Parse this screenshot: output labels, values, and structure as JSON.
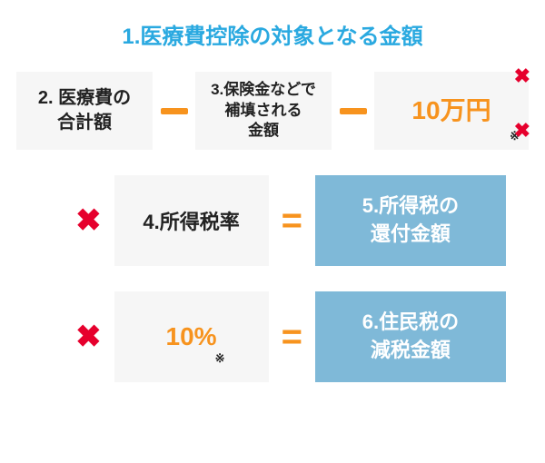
{
  "colors": {
    "title": "#2aa9e0",
    "accent_orange": "#f7931e",
    "red_x": "#e6002d",
    "box_bg": "#f6f6f6",
    "result_bg": "#7fb9d8",
    "result_text": "#ffffff",
    "text": "#222222"
  },
  "title": {
    "text": "1.医療費控除の対象となる金額",
    "fontsize": 24
  },
  "row1": {
    "box1": {
      "line1": "2. 医療費の",
      "line2": "合計額"
    },
    "box2": {
      "line1": "3.保険金などで",
      "line2": "補填される",
      "line3": "金額"
    },
    "box3": {
      "text": "10万円",
      "note": "※"
    },
    "minus_width": 30,
    "minus_height": 7
  },
  "x_icon": {
    "glyph": "✖",
    "fontsize": 34
  },
  "x_small": {
    "glyph": "✖",
    "fontsize": 22
  },
  "eq": {
    "glyph": "=",
    "fontsize": 40
  },
  "row2": {
    "mid": "4.所得税率",
    "result": {
      "line1": "5.所得税の",
      "line2": "還付金額"
    }
  },
  "row3": {
    "mid": "10%",
    "mid_note": "※",
    "result": {
      "line1": "6.住民税の",
      "line2": "減税金額"
    }
  }
}
